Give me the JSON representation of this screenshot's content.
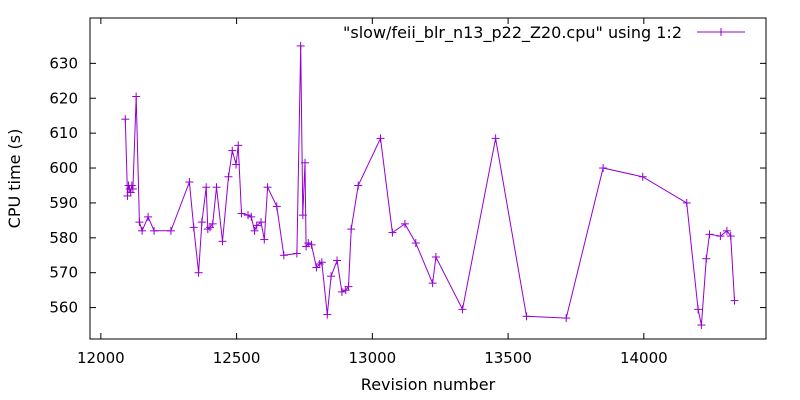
{
  "chart_data": {
    "type": "line",
    "xlabel": "Revision number",
    "ylabel": "CPU time (s)",
    "xlim": [
      11960,
      14450
    ],
    "ylim": [
      551,
      643
    ],
    "xticks": [
      12000,
      12500,
      13000,
      13500,
      14000
    ],
    "yticks": [
      560,
      570,
      580,
      590,
      600,
      610,
      620,
      630
    ],
    "grid": false,
    "legend_position": "top-right",
    "series": [
      {
        "name": "\"slow/feii_blr_n13_p22_Z20.cpu\" using 1:2",
        "color": "#9400d3",
        "marker": "plus",
        "points": [
          [
            12090,
            614
          ],
          [
            12098,
            592
          ],
          [
            12102,
            595
          ],
          [
            12106,
            594
          ],
          [
            12110,
            593
          ],
          [
            12114,
            595
          ],
          [
            12118,
            594
          ],
          [
            12130,
            620.5
          ],
          [
            12142,
            584.5
          ],
          [
            12152,
            582
          ],
          [
            12174,
            586
          ],
          [
            12196,
            582
          ],
          [
            12258,
            582
          ],
          [
            12326,
            596
          ],
          [
            12342,
            583
          ],
          [
            12360,
            570
          ],
          [
            12372,
            584.5
          ],
          [
            12388,
            594.5
          ],
          [
            12394,
            582.5
          ],
          [
            12402,
            583
          ],
          [
            12412,
            584
          ],
          [
            12426,
            594.5
          ],
          [
            12448,
            579
          ],
          [
            12470,
            597.5
          ],
          [
            12484,
            605
          ],
          [
            12498,
            601
          ],
          [
            12506,
            606.5
          ],
          [
            12518,
            587
          ],
          [
            12542,
            586.5
          ],
          [
            12554,
            586
          ],
          [
            12566,
            582
          ],
          [
            12574,
            583.5
          ],
          [
            12590,
            584.5
          ],
          [
            12602,
            579.5
          ],
          [
            12614,
            594.5
          ],
          [
            12648,
            589
          ],
          [
            12674,
            575
          ],
          [
            12722,
            575.5
          ],
          [
            12736,
            635
          ],
          [
            12744,
            586.5
          ],
          [
            12752,
            601.5
          ],
          [
            12756,
            577.5
          ],
          [
            12764,
            578.5
          ],
          [
            12776,
            578
          ],
          [
            12794,
            571.5
          ],
          [
            12806,
            572.5
          ],
          [
            12814,
            573
          ],
          [
            12834,
            558
          ],
          [
            12848,
            569
          ],
          [
            12870,
            573.5
          ],
          [
            12888,
            564.5
          ],
          [
            12902,
            565
          ],
          [
            12912,
            566
          ],
          [
            12922,
            582.5
          ],
          [
            12948,
            595
          ],
          [
            13030,
            608.5
          ],
          [
            13074,
            581.5
          ],
          [
            13120,
            584
          ],
          [
            13160,
            578.5
          ],
          [
            13222,
            567
          ],
          [
            13234,
            574.5
          ],
          [
            13332,
            559.5
          ],
          [
            13454,
            608.5
          ],
          [
            13568,
            557.5
          ],
          [
            13714,
            557
          ],
          [
            13850,
            600
          ],
          [
            13996,
            597.5
          ],
          [
            14158,
            590
          ],
          [
            14200,
            559.5
          ],
          [
            14212,
            555
          ],
          [
            14230,
            574
          ],
          [
            14242,
            581
          ],
          [
            14282,
            580.5
          ],
          [
            14306,
            582
          ],
          [
            14320,
            580.5
          ],
          [
            14334,
            562
          ]
        ]
      }
    ]
  }
}
